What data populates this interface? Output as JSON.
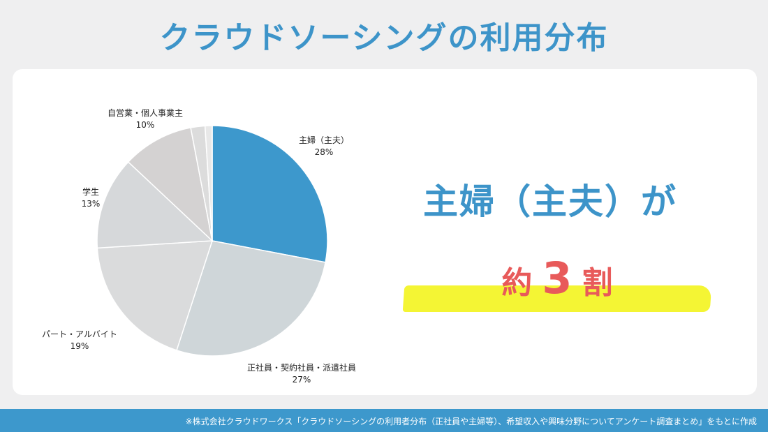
{
  "page": {
    "title": "クラウドソーシングの利用分布",
    "callout_line1": "主婦（主夫）が",
    "callout_prefix": "約",
    "callout_number": "3",
    "callout_suffix": "割",
    "source_note": "※株式会社クラウドワークス「クラウドソーシングの利用者分布（正社員や主婦等）、希望収入や興味分野についてアンケート調査まとめ」をもとに作成"
  },
  "colors": {
    "title": "#3d94c9",
    "accent_blue": "#3d98cc",
    "emphasis_red": "#e85a5a",
    "highlight_yellow": "#f4f534",
    "page_bg": "#efeff0"
  },
  "chart_data": {
    "type": "pie",
    "title": "",
    "unit": "%",
    "slices": [
      {
        "label": "主婦（主夫）",
        "value": 28,
        "display": "28%",
        "color": "#3d98cc"
      },
      {
        "label": "正社員・契約社員・派遣社員",
        "value": 27,
        "display": "27%",
        "color": "#cfd6d9"
      },
      {
        "label": "パート・アルバイト",
        "value": 19,
        "display": "19%",
        "color": "#dadbdc"
      },
      {
        "label": "学生",
        "value": 13,
        "display": "13%",
        "color": "#d6d8da"
      },
      {
        "label": "自営業・個人事業主",
        "value": 10,
        "display": "10%",
        "color": "#d4d2d2"
      },
      {
        "label": "",
        "value": 2,
        "display": "",
        "color": "#dcdcdc"
      },
      {
        "label": "",
        "value": 1,
        "display": "",
        "color": "#e8e8e8"
      }
    ],
    "start_angle_deg": 0,
    "direction": "clockwise",
    "legend": "none"
  }
}
